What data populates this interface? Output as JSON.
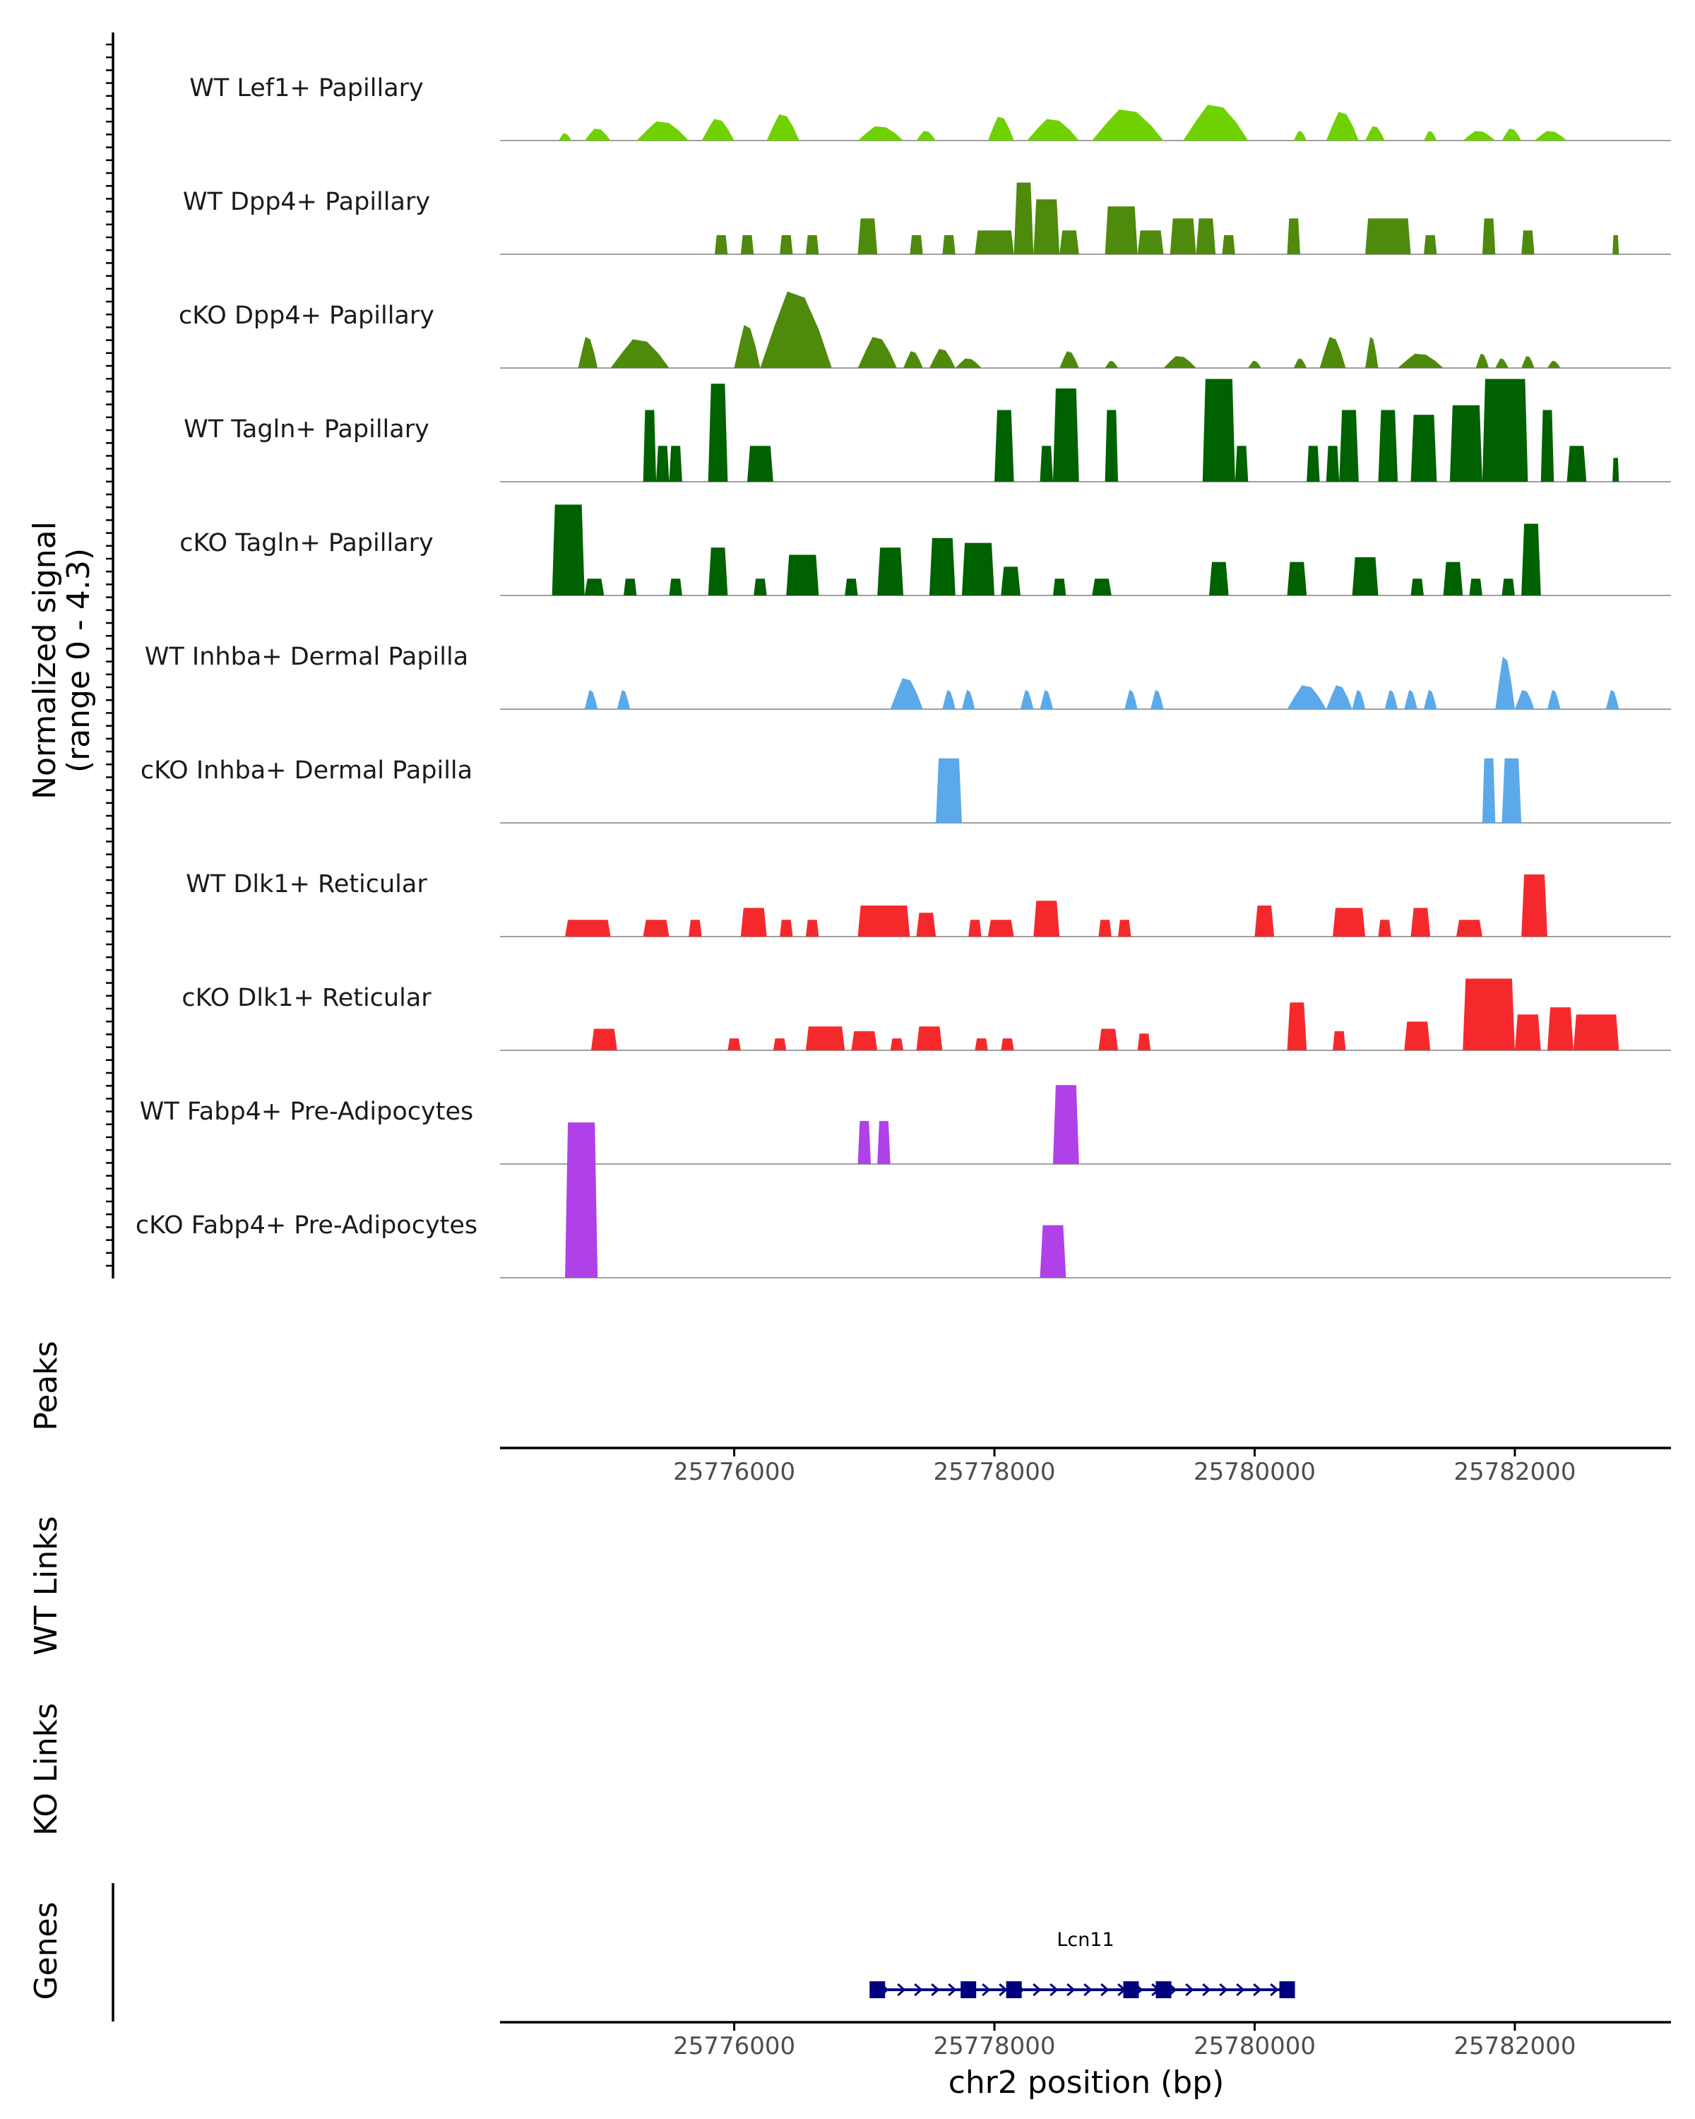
{
  "chart_data": {
    "type": "area",
    "chromosome": "chr2",
    "x_range": [
      25774200,
      25783200
    ],
    "y_range": [
      0,
      4.3
    ],
    "y_axis_label_line1": "Normalized signal",
    "y_axis_label_line2": "(range 0 - 4.3)",
    "x_axis_label": "chr2 position (bp)",
    "x_ticks": [
      25776000,
      25778000,
      25780000,
      25782000
    ],
    "x_tick_labels": [
      "25776000",
      "25778000",
      "25780000",
      "25782000"
    ],
    "colors": {
      "lef1": "#6fd100",
      "dpp4": "#4e8a0c",
      "tagln": "#006100",
      "inhba": "#5ba9e8",
      "dlk1": "#f5292c",
      "fabp4": "#b040e8",
      "gene": "#00007f"
    },
    "tracks": [
      {
        "name": "WT Lef1+ Papillary",
        "color_key": "lef1",
        "style": "smooth",
        "peaks": [
          [
            25774650,
            25774750,
            0.3
          ],
          [
            25774850,
            25775050,
            0.5
          ],
          [
            25775250,
            25775650,
            0.8
          ],
          [
            25775750,
            25776000,
            0.9
          ],
          [
            25776250,
            25776500,
            1.1
          ],
          [
            25776950,
            25777300,
            0.6
          ],
          [
            25777400,
            25777550,
            0.4
          ],
          [
            25777950,
            25778150,
            1.0
          ],
          [
            25778250,
            25778650,
            0.9
          ],
          [
            25778750,
            25779300,
            1.3
          ],
          [
            25779450,
            25779950,
            1.5
          ],
          [
            25780300,
            25780400,
            0.4
          ],
          [
            25780550,
            25780800,
            1.2
          ],
          [
            25780850,
            25781000,
            0.6
          ],
          [
            25781300,
            25781400,
            0.4
          ],
          [
            25781600,
            25781850,
            0.4
          ],
          [
            25781900,
            25782050,
            0.5
          ],
          [
            25782150,
            25782400,
            0.4
          ]
        ]
      },
      {
        "name": "WT Dpp4+ Papillary",
        "color_key": "dpp4",
        "style": "block",
        "peaks": [
          [
            25775850,
            25775950,
            0.8
          ],
          [
            25776050,
            25776150,
            0.8
          ],
          [
            25776350,
            25776450,
            0.8
          ],
          [
            25776550,
            25776650,
            0.8
          ],
          [
            25776950,
            25777100,
            1.5
          ],
          [
            25777350,
            25777450,
            0.8
          ],
          [
            25777600,
            25777700,
            0.8
          ],
          [
            25777850,
            25778150,
            1.0
          ],
          [
            25778150,
            25778300,
            3.0
          ],
          [
            25778300,
            25778500,
            2.3
          ],
          [
            25778500,
            25778650,
            1.0
          ],
          [
            25778850,
            25779100,
            2.0
          ],
          [
            25779100,
            25779300,
            1.0
          ],
          [
            25779350,
            25779550,
            1.5
          ],
          [
            25779550,
            25779700,
            1.5
          ],
          [
            25779750,
            25779850,
            0.8
          ],
          [
            25780250,
            25780350,
            1.5
          ],
          [
            25780850,
            25781200,
            1.5
          ],
          [
            25781300,
            25781400,
            0.8
          ],
          [
            25781750,
            25781850,
            1.5
          ],
          [
            25782050,
            25782150,
            1.0
          ],
          [
            25782750,
            25782800,
            0.8
          ]
        ]
      },
      {
        "name": "cKO Dpp4+ Papillary",
        "color_key": "dpp4",
        "style": "smooth",
        "peaks": [
          [
            25774800,
            25774950,
            1.3
          ],
          [
            25775050,
            25775500,
            1.2
          ],
          [
            25776000,
            25776200,
            1.8
          ],
          [
            25776200,
            25776750,
            3.2
          ],
          [
            25776950,
            25777250,
            1.3
          ],
          [
            25777300,
            25777450,
            0.7
          ],
          [
            25777500,
            25777700,
            0.8
          ],
          [
            25777700,
            25777900,
            0.4
          ],
          [
            25778500,
            25778650,
            0.7
          ],
          [
            25778850,
            25778950,
            0.3
          ],
          [
            25779300,
            25779550,
            0.5
          ],
          [
            25779950,
            25780050,
            0.3
          ],
          [
            25780300,
            25780400,
            0.4
          ],
          [
            25780500,
            25780700,
            1.3
          ],
          [
            25780850,
            25780950,
            1.3
          ],
          [
            25781100,
            25781450,
            0.6
          ],
          [
            25781700,
            25781800,
            0.6
          ],
          [
            25781850,
            25781950,
            0.4
          ],
          [
            25782050,
            25782150,
            0.5
          ],
          [
            25782250,
            25782350,
            0.3
          ]
        ]
      },
      {
        "name": "WT Tagln+ Papillary",
        "color_key": "tagln",
        "style": "block",
        "peaks": [
          [
            25775300,
            25775400,
            3.0
          ],
          [
            25775400,
            25775500,
            1.5
          ],
          [
            25775500,
            25775600,
            1.5
          ],
          [
            25775800,
            25775950,
            4.1
          ],
          [
            25776100,
            25776300,
            1.5
          ],
          [
            25778000,
            25778150,
            3.0
          ],
          [
            25778350,
            25778450,
            1.5
          ],
          [
            25778450,
            25778650,
            3.9
          ],
          [
            25778850,
            25778950,
            3.0
          ],
          [
            25779600,
            25779850,
            4.3
          ],
          [
            25779850,
            25779950,
            1.5
          ],
          [
            25780400,
            25780500,
            1.5
          ],
          [
            25780550,
            25780650,
            1.5
          ],
          [
            25780650,
            25780800,
            3.0
          ],
          [
            25780950,
            25781100,
            3.0
          ],
          [
            25781200,
            25781400,
            2.8
          ],
          [
            25781500,
            25781750,
            3.2
          ],
          [
            25781750,
            25782100,
            4.3
          ],
          [
            25782200,
            25782300,
            3.0
          ],
          [
            25782400,
            25782550,
            1.5
          ],
          [
            25782750,
            25782800,
            1.0
          ]
        ]
      },
      {
        "name": "cKO Tagln+ Papillary",
        "color_key": "tagln",
        "style": "block",
        "peaks": [
          [
            25774600,
            25774850,
            3.8
          ],
          [
            25774850,
            25775000,
            0.7
          ],
          [
            25775150,
            25775250,
            0.7
          ],
          [
            25775500,
            25775600,
            0.7
          ],
          [
            25775800,
            25775950,
            2.0
          ],
          [
            25776150,
            25776250,
            0.7
          ],
          [
            25776400,
            25776650,
            1.7
          ],
          [
            25776850,
            25776950,
            0.7
          ],
          [
            25777100,
            25777300,
            2.0
          ],
          [
            25777500,
            25777700,
            2.4
          ],
          [
            25777750,
            25778000,
            2.2
          ],
          [
            25778050,
            25778200,
            1.2
          ],
          [
            25778450,
            25778550,
            0.7
          ],
          [
            25778750,
            25778900,
            0.7
          ],
          [
            25779650,
            25779800,
            1.4
          ],
          [
            25780250,
            25780400,
            1.4
          ],
          [
            25780750,
            25780950,
            1.6
          ],
          [
            25781200,
            25781300,
            0.7
          ],
          [
            25781450,
            25781600,
            1.4
          ],
          [
            25781650,
            25781750,
            0.7
          ],
          [
            25781900,
            25782000,
            0.7
          ],
          [
            25782050,
            25782200,
            3.0
          ]
        ]
      },
      {
        "name": "WT Inhba+ Dermal Papilla",
        "color_key": "inhba",
        "style": "smooth",
        "peaks": [
          [
            25774850,
            25774950,
            0.8
          ],
          [
            25775100,
            25775200,
            0.8
          ],
          [
            25777200,
            25777450,
            1.3
          ],
          [
            25777600,
            25777700,
            0.8
          ],
          [
            25777750,
            25777850,
            0.8
          ],
          [
            25778200,
            25778300,
            0.8
          ],
          [
            25778350,
            25778450,
            0.8
          ],
          [
            25779000,
            25779100,
            0.8
          ],
          [
            25779200,
            25779300,
            0.8
          ],
          [
            25780250,
            25780550,
            1.0
          ],
          [
            25780550,
            25780750,
            1.0
          ],
          [
            25780750,
            25780850,
            0.8
          ],
          [
            25781000,
            25781100,
            0.8
          ],
          [
            25781150,
            25781250,
            0.8
          ],
          [
            25781300,
            25781400,
            0.8
          ],
          [
            25781850,
            25782000,
            2.2
          ],
          [
            25782000,
            25782150,
            0.8
          ],
          [
            25782250,
            25782350,
            0.8
          ],
          [
            25782700,
            25782800,
            0.8
          ]
        ]
      },
      {
        "name": "cKO Inhba+ Dermal Papilla",
        "color_key": "inhba",
        "style": "block",
        "peaks": [
          [
            25777550,
            25777750,
            2.7
          ],
          [
            25781750,
            25781850,
            2.7
          ],
          [
            25781900,
            25782050,
            2.7
          ]
        ]
      },
      {
        "name": "WT Dlk1+ Reticular",
        "color_key": "dlk1",
        "style": "block",
        "peaks": [
          [
            25774700,
            25775050,
            0.7
          ],
          [
            25775300,
            25775500,
            0.7
          ],
          [
            25775650,
            25775750,
            0.7
          ],
          [
            25776050,
            25776250,
            1.2
          ],
          [
            25776350,
            25776450,
            0.7
          ],
          [
            25776550,
            25776650,
            0.7
          ],
          [
            25776950,
            25777350,
            1.3
          ],
          [
            25777400,
            25777550,
            1.0
          ],
          [
            25777800,
            25777900,
            0.7
          ],
          [
            25777950,
            25778150,
            0.7
          ],
          [
            25778300,
            25778500,
            1.5
          ],
          [
            25778800,
            25778900,
            0.7
          ],
          [
            25778950,
            25779050,
            0.7
          ],
          [
            25780000,
            25780150,
            1.3
          ],
          [
            25780600,
            25780850,
            1.2
          ],
          [
            25780950,
            25781050,
            0.7
          ],
          [
            25781200,
            25781350,
            1.2
          ],
          [
            25781550,
            25781750,
            0.7
          ],
          [
            25782050,
            25782250,
            2.6
          ]
        ]
      },
      {
        "name": "cKO Dlk1+ Reticular",
        "color_key": "dlk1",
        "style": "block",
        "peaks": [
          [
            25774900,
            25775100,
            0.9
          ],
          [
            25775950,
            25776050,
            0.5
          ],
          [
            25776300,
            25776400,
            0.5
          ],
          [
            25776550,
            25776850,
            1.0
          ],
          [
            25776900,
            25777100,
            0.8
          ],
          [
            25777200,
            25777300,
            0.5
          ],
          [
            25777400,
            25777600,
            1.0
          ],
          [
            25777850,
            25777950,
            0.5
          ],
          [
            25778050,
            25778150,
            0.5
          ],
          [
            25778800,
            25778950,
            0.9
          ],
          [
            25779100,
            25779200,
            0.7
          ],
          [
            25780250,
            25780400,
            2.0
          ],
          [
            25780600,
            25780700,
            0.8
          ],
          [
            25781150,
            25781350,
            1.2
          ],
          [
            25781600,
            25782000,
            3.0
          ],
          [
            25782000,
            25782200,
            1.5
          ],
          [
            25782250,
            25782450,
            1.8
          ],
          [
            25782450,
            25782800,
            1.5
          ]
        ]
      },
      {
        "name": "WT Fabp4+ Pre-Adipocytes",
        "color_key": "fabp4",
        "style": "block",
        "peaks": [
          [
            25776950,
            25777050,
            1.8
          ],
          [
            25777100,
            25777200,
            1.8
          ],
          [
            25778450,
            25778650,
            3.3
          ]
        ]
      },
      {
        "name": "cKO Fabp4+ Pre-Adipocytes",
        "color_key": "fabp4",
        "style": "block",
        "peaks": [
          [
            25774700,
            25774950,
            6.5
          ],
          [
            25778350,
            25778550,
            2.2
          ]
        ]
      }
    ],
    "empty_tracks": [
      "Peaks",
      "WT Links",
      "KO Links"
    ],
    "genes_track": {
      "label": "Genes",
      "gene_name": "Lcn11",
      "strand": "+",
      "start": 25777100,
      "end": 25780250,
      "exons": [
        25777100,
        25777800,
        25778150,
        25779050,
        25779300,
        25780250
      ]
    }
  }
}
